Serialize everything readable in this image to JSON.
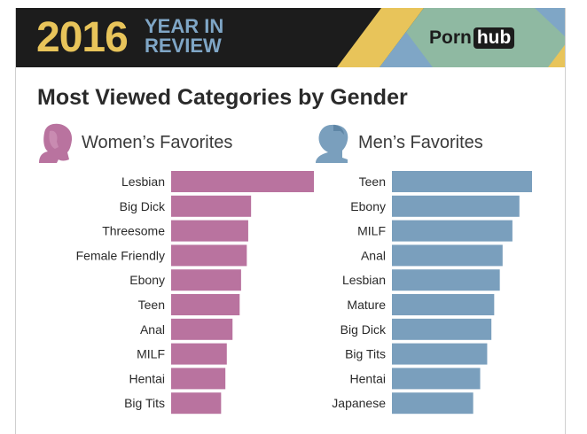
{
  "banner": {
    "year": "2016",
    "subtitle_line1": "YEAR IN",
    "subtitle_line2": "REVIEW",
    "logo_left": "Porn",
    "logo_right": "hub"
  },
  "title": "Most Viewed Categories by Gender",
  "colors": {
    "women": "#b9739f",
    "men": "#7a9fbd",
    "banner_bg": "#1c1c1c",
    "gold": "#e8c45a",
    "blue_text": "#7fa6c6",
    "logo_green": "#8fb9a2"
  },
  "icons": {
    "women": "woman-silhouette-icon",
    "men": "man-silhouette-icon"
  },
  "chart_data": [
    {
      "type": "bar",
      "orientation": "horizontal",
      "title": "Women’s Favorites",
      "categories": [
        "Lesbian",
        "Big Dick",
        "Threesome",
        "Female Friendly",
        "Ebony",
        "Teen",
        "Anal",
        "MILF",
        "Hentai",
        "Big Tits"
      ],
      "values": [
        100,
        56,
        54,
        53,
        49,
        48,
        43,
        39,
        38,
        35
      ],
      "color": "#b9739f",
      "grid": false
    },
    {
      "type": "bar",
      "orientation": "horizontal",
      "title": "Men’s Favorites",
      "categories": [
        "Teen",
        "Ebony",
        "MILF",
        "Anal",
        "Lesbian",
        "Mature",
        "Big Dick",
        "Big Tits",
        "Hentai",
        "Japanese"
      ],
      "values": [
        100,
        91,
        86,
        79,
        77,
        73,
        71,
        68,
        63,
        58
      ],
      "color": "#7a9fbd",
      "grid": false
    }
  ]
}
